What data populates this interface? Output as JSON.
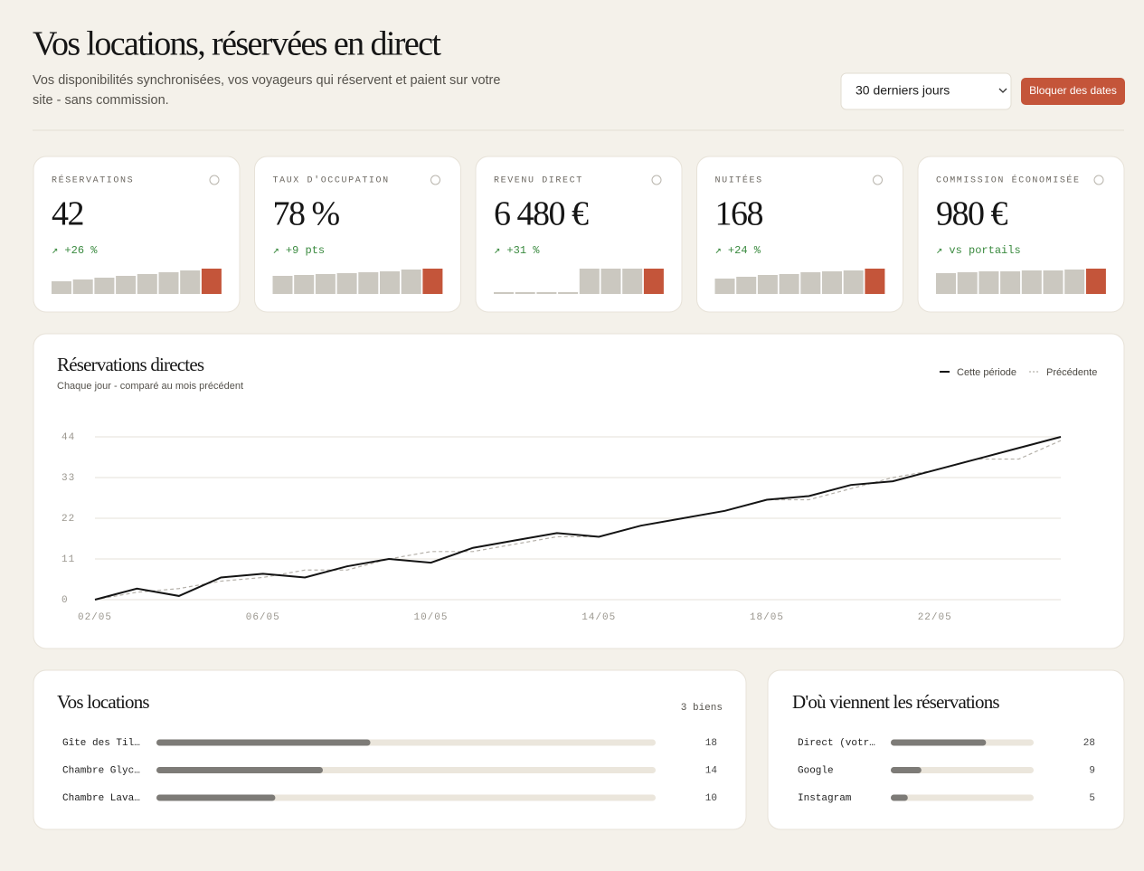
{
  "header": {
    "title": "Vos locations, réservées en direct",
    "subtitle_line1": "Vos disponibilités synchronisées, vos voyageurs qui réservent et paient sur votre",
    "subtitle_line2": "site - sans commission."
  },
  "controls": {
    "period": "30 derniers jours",
    "button": "Bloquer des dates"
  },
  "kpis": [
    {
      "label": "RÉSERVATIONS",
      "value": "42",
      "delta": "↗ +26 %",
      "bars": [
        14,
        16,
        18,
        20,
        22,
        24,
        26,
        28
      ]
    },
    {
      "label": "TAUX D'OCCUPATION",
      "value": "78 %",
      "delta": "↗ +9 pts",
      "bars": [
        20,
        21,
        22,
        23,
        24,
        25,
        27,
        28
      ]
    },
    {
      "label": "REVENU DIRECT",
      "value": "6 480 €",
      "delta": "↗ +31 %",
      "bars": [
        2,
        2,
        2,
        2,
        28,
        28,
        28,
        28
      ]
    },
    {
      "label": "NUITÉES",
      "value": "168",
      "delta": "↗ +24 %",
      "bars": [
        17,
        19,
        21,
        22,
        24,
        25,
        26,
        28
      ]
    },
    {
      "label": "COMMISSION ÉCONOMISÉE",
      "value": "980 €",
      "delta": "↗ vs portails",
      "bars": [
        23,
        24,
        25,
        25,
        26,
        26,
        27,
        28
      ]
    }
  ],
  "chart_data": {
    "type": "line",
    "title": "Réservations directes",
    "subtitle": "Chaque jour - comparé au mois précédent",
    "categories": [
      "02/05",
      null,
      null,
      null,
      "06/05",
      null,
      null,
      null,
      "10/05",
      null,
      null,
      null,
      "14/05",
      null,
      null,
      null,
      "18/05",
      null,
      null,
      null,
      "22/05",
      null,
      null,
      null
    ],
    "series": [
      {
        "name": "Cette période",
        "color": "#141414",
        "values": [
          0,
          3,
          1,
          6,
          7,
          6,
          9,
          11,
          10,
          14,
          16,
          18,
          17,
          20,
          22,
          24,
          27,
          28,
          31,
          32,
          35,
          38,
          41,
          44
        ]
      },
      {
        "name": "Précédente",
        "color": "#b5b1aa",
        "dashed": true,
        "values": [
          0,
          2,
          3,
          5,
          6,
          8,
          8,
          11,
          13,
          13,
          15,
          17,
          17,
          20,
          22,
          24,
          27,
          27,
          30,
          33,
          35,
          38,
          38,
          43
        ]
      }
    ],
    "ylim": [
      0,
      44
    ],
    "yticks": [
      0,
      11,
      22,
      33,
      44
    ],
    "grid": true
  },
  "locations": {
    "title": "Vos locations",
    "count": "3 biens",
    "items": [
      {
        "name": "Gîte des Til…",
        "value": 18
      },
      {
        "name": "Chambre Glyc…",
        "value": 14
      },
      {
        "name": "Chambre Lava…",
        "value": 10
      }
    ]
  },
  "sources": {
    "title": "D'où viennent les réservations",
    "items": [
      {
        "name": "Direct (votr…",
        "value": 28
      },
      {
        "name": "Google",
        "value": 9
      },
      {
        "name": "Instagram",
        "value": 5
      }
    ]
  }
}
